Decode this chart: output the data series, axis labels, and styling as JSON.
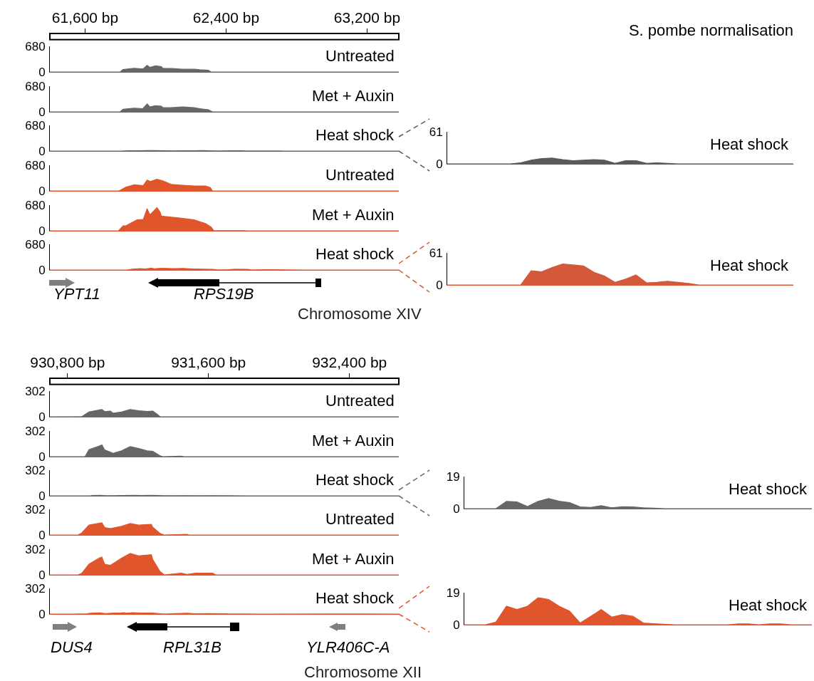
{
  "chart_data": [
    {
      "type": "area",
      "x": [
        61400,
        61799,
        61815,
        61879,
        61928,
        61952,
        61968,
        62000,
        62033,
        62041,
        62089,
        62154,
        62218,
        62251,
        62299,
        62315,
        63380
      ],
      "series": [
        {
          "name": "Untreated",
          "color": "#666666",
          "values": [
            0,
            0,
            65,
            97,
            78,
            175,
            120,
            162,
            140,
            97,
            90,
            71,
            71,
            58,
            45,
            0,
            0
          ]
        }
      ],
      "xlim": [
        61400,
        63380
      ],
      "ylim": [
        0,
        680
      ],
      "yticks": [
        0,
        680
      ],
      "xticks": [
        {
          "value": 61600,
          "label": "61,600 bp"
        },
        {
          "value": 62400,
          "label": "62,400 bp"
        },
        {
          "value": 63200,
          "label": "63,200 bp"
        }
      ]
    },
    {
      "type": "area",
      "x": [
        61400,
        61799,
        61815,
        61879,
        61928,
        61952,
        61968,
        62000,
        62033,
        62041,
        62089,
        62154,
        62218,
        62251,
        62299,
        62323,
        63380
      ],
      "series": [
        {
          "name": "Met + Auxin",
          "color": "#666666",
          "values": [
            0,
            0,
            70,
            95,
            85,
            210,
            130,
            165,
            150,
            110,
            110,
            130,
            110,
            85,
            55,
            0,
            0
          ]
        }
      ],
      "xlim": [
        61400,
        63380
      ],
      "ylim": [
        0,
        680
      ],
      "yticks": [
        0,
        680
      ],
      "tick_labels": "y"
    },
    {
      "type": "area",
      "x": [
        61400,
        61807,
        61849,
        61905,
        61955,
        61990,
        62046,
        62102,
        62158,
        62214,
        62270,
        62327,
        62355,
        62425,
        62495,
        62509,
        62621,
        62706,
        62720,
        63380
      ],
      "series": [
        {
          "name": "Heat shock",
          "color": "#666666",
          "values": [
            0,
            0,
            8,
            6,
            12,
            11,
            9,
            5,
            8,
            6,
            10,
            4,
            1,
            6,
            6,
            1,
            2,
            1,
            0,
            0
          ]
        }
      ],
      "xlim": [
        61400,
        63380
      ],
      "ylim": [
        0,
        680
      ],
      "yticks": [
        0,
        680
      ],
      "tick_labels": "y"
    },
    {
      "type": "area",
      "x": [
        61400,
        61790,
        61800,
        61831,
        61879,
        61930,
        61952,
        61970,
        62008,
        62040,
        62089,
        62154,
        62220,
        62283,
        62310,
        62323,
        63380
      ],
      "series": [
        {
          "name": "Untreated",
          "color": "#e0552b",
          "values": [
            0,
            0,
            20,
            97,
            162,
            140,
            290,
            250,
            311,
            270,
            175,
            150,
            130,
            130,
            90,
            0,
            0
          ]
        }
      ],
      "xlim": [
        61400,
        63380
      ],
      "ylim": [
        0,
        680
      ],
      "yticks": [
        0,
        680
      ],
      "tick_labels": "y"
    },
    {
      "type": "area",
      "x": [
        61400,
        61790,
        61815,
        61831,
        61895,
        61930,
        61952,
        61968,
        62008,
        62025,
        62033,
        62089,
        62154,
        62218,
        62283,
        62315,
        62330,
        62500,
        62520,
        63380
      ],
      "series": [
        {
          "name": "Met + Auxin",
          "color": "#e0552b",
          "values": [
            0,
            0,
            130,
            130,
            290,
            300,
            585,
            420,
            615,
            500,
            390,
            360,
            330,
            290,
            195,
            100,
            5,
            5,
            0,
            0
          ]
        }
      ],
      "xlim": [
        61400,
        63380
      ],
      "ylim": [
        0,
        680
      ],
      "yticks": [
        0,
        680
      ],
      "tick_labels": "y"
    },
    {
      "type": "area",
      "x": [
        61400,
        61835,
        61870,
        61912,
        61941,
        61978,
        61990,
        62032,
        62102,
        62158,
        62214,
        62270,
        62327,
        62355,
        62411,
        62453,
        62523,
        62544,
        62636,
        62748,
        62832,
        63380
      ],
      "series": [
        {
          "name": "Heat shock",
          "color": "#e0552b",
          "values": [
            0,
            0,
            23,
            38,
            25,
            51,
            30,
            43,
            36,
            41,
            28,
            20,
            15,
            5,
            8,
            20,
            18,
            1,
            8,
            4,
            0,
            0
          ]
        }
      ],
      "xlim": [
        61400,
        63380
      ],
      "ylim": [
        0,
        680
      ],
      "yticks": [
        0,
        680
      ],
      "tick_labels": "y",
      "annotations": [
        "YPT11",
        "RPS19B",
        "Chromosome XIV"
      ]
    },
    {
      "type": "area",
      "title": "S. pombe normalisation",
      "categories": [
        null,
        null,
        null,
        null,
        null,
        null,
        null,
        null,
        null,
        null,
        null,
        null,
        null,
        null,
        null,
        null,
        null,
        null,
        null,
        null,
        null,
        null,
        null,
        null,
        null,
        null,
        null,
        null,
        null,
        null,
        null,
        null,
        null,
        null
      ],
      "series": [
        {
          "name": "Heat shock",
          "color": "#5a5a5a",
          "values": [
            0,
            0,
            0,
            0,
            0,
            0,
            0,
            2,
            7,
            10,
            11,
            8,
            6,
            7,
            8,
            7,
            1,
            6,
            6,
            1,
            2,
            1,
            0,
            0,
            0,
            0,
            0,
            0,
            0,
            0,
            0,
            0,
            0,
            0
          ]
        }
      ],
      "ylim": [
        0,
        61
      ],
      "yticks": [
        0,
        61
      ],
      "tick_labels": "y"
    },
    {
      "type": "area",
      "categories": [
        null,
        null,
        null,
        null,
        null,
        null,
        null,
        null,
        null,
        null,
        null,
        null,
        null,
        null,
        null,
        null,
        null,
        null,
        null,
        null,
        null,
        null,
        null,
        null,
        null,
        null,
        null,
        null,
        null,
        null,
        null,
        null,
        null,
        null
      ],
      "series": [
        {
          "name": "Heat shock",
          "color": "#d4583a",
          "values": [
            0,
            0,
            0,
            0,
            0,
            0,
            0,
            0,
            27,
            25,
            33,
            40,
            38,
            36,
            24,
            17,
            5,
            11,
            19,
            4,
            5,
            7,
            5,
            3,
            0,
            0,
            0,
            0,
            0,
            0,
            0,
            0,
            0,
            0
          ]
        }
      ],
      "ylim": [
        0,
        61
      ],
      "yticks": [
        0,
        61
      ],
      "tick_labels": "y"
    },
    {
      "type": "area",
      "x": [
        930700,
        930882,
        930922,
        930979,
        930995,
        931011,
        931043,
        931059,
        931107,
        931156,
        931204,
        931252,
        931284,
        931309,
        931325,
        932680
      ],
      "series": [
        {
          "name": "Untreated",
          "color": "#666666",
          "values": [
            0,
            2,
            56,
            79,
            85,
            60,
            65,
            42,
            56,
            85,
            70,
            62,
            65,
            30,
            0,
            0
          ]
        }
      ],
      "xlim": [
        930700,
        932680
      ],
      "ylim": [
        0,
        302
      ],
      "yticks": [
        0,
        302
      ],
      "xticks": [
        {
          "value": 930800,
          "label": "930,800 bp"
        },
        {
          "value": 931600,
          "label": "931,600 bp"
        },
        {
          "value": 932400,
          "label": "932,400 bp"
        }
      ]
    },
    {
      "type": "area",
      "x": [
        930700,
        930900,
        930922,
        930979,
        930995,
        931011,
        931059,
        931107,
        931156,
        931204,
        931252,
        931284,
        931325,
        931341,
        931446,
        931460,
        932680
      ],
      "series": [
        {
          "name": "Met + Auxin",
          "color": "#666666",
          "values": [
            0,
            0,
            82,
            124,
            138,
            80,
            40,
            68,
            118,
            96,
            68,
            62,
            10,
            0,
            5,
            0,
            0
          ]
        }
      ],
      "xlim": [
        930700,
        932680
      ],
      "ylim": [
        0,
        302
      ],
      "yticks": [
        0,
        302
      ],
      "tick_labels": "y"
    },
    {
      "type": "area",
      "x": [
        930700,
        930931,
        930938,
        930987,
        931015,
        931064,
        931106,
        931176,
        931218,
        931274,
        931316,
        931337,
        931413,
        931483,
        931553,
        931623,
        931707,
        931819,
        931830,
        932680
      ],
      "series": [
        {
          "name": "Heat shock",
          "color": "#666666",
          "values": [
            0,
            0,
            4.3,
            6.1,
            1.8,
            1.2,
            3.8,
            6.1,
            4.3,
            4.5,
            3,
            1.1,
            0.6,
            1.8,
            0.3,
            1.5,
            0.5,
            0.2,
            0,
            0
          ]
        }
      ],
      "xlim": [
        930700,
        932680
      ],
      "ylim": [
        0,
        302
      ],
      "yticks": [
        0,
        302
      ],
      "tick_labels": "y"
    },
    {
      "type": "area",
      "x": [
        930700,
        930860,
        930882,
        930922,
        930995,
        931011,
        931043,
        931107,
        931156,
        931204,
        931276,
        931284,
        931325,
        931349,
        931478,
        931490,
        932680
      ],
      "series": [
        {
          "name": "Untreated",
          "color": "#e0552b",
          "values": [
            0,
            0,
            25,
            116,
            144,
            88,
            75,
            102,
            135,
            116,
            125,
            90,
            19,
            0,
            8,
            0,
            0
          ]
        }
      ],
      "xlim": [
        930700,
        932680
      ],
      "ylim": [
        0,
        302
      ],
      "yticks": [
        0,
        302
      ],
      "tick_labels": "y"
    },
    {
      "type": "area",
      "x": [
        930700,
        930860,
        930882,
        930922,
        930979,
        930995,
        931011,
        931043,
        931107,
        931156,
        931204,
        931276,
        931284,
        931325,
        931349,
        931446,
        931478,
        931527,
        931624,
        931640,
        932680
      ],
      "series": [
        {
          "name": "Met + Auxin",
          "color": "#e0552b",
          "values": [
            0,
            0,
            20,
            126,
            196,
            210,
            126,
            112,
            196,
            252,
            224,
            238,
            180,
            40,
            0,
            20,
            5,
            20,
            20,
            0,
            0
          ]
        }
      ],
      "xlim": [
        930700,
        932680
      ],
      "ylim": [
        0,
        302
      ],
      "yticks": [
        0,
        302
      ],
      "tick_labels": "y"
    },
    {
      "type": "area",
      "x": [
        930700,
        930826,
        930910,
        930938,
        930987,
        931015,
        931050,
        931106,
        931120,
        931134,
        931169,
        931218,
        931281,
        931330,
        931365,
        931413,
        931476,
        931525,
        931609,
        931693,
        931721,
        931805,
        931889,
        932281,
        932477,
        932680
      ],
      "series": [
        {
          "name": "Heat shock",
          "color": "#e0552b",
          "values": [
            0,
            0,
            2.4,
            11,
            13.4,
            5.5,
            10.3,
            14,
            16.3,
            10,
            16.6,
            11,
            11.9,
            4,
            0.5,
            4.7,
            9.5,
            4.3,
            6.3,
            4,
            1,
            0.5,
            0,
            0.5,
            0.5,
            0
          ]
        }
      ],
      "xlim": [
        930700,
        932680
      ],
      "ylim": [
        0,
        302
      ],
      "yticks": [
        0,
        302
      ],
      "tick_labels": "y",
      "annotations": [
        "DUS4",
        "RPL31B",
        "YLR406C-A",
        "Chromosome XII"
      ]
    },
    {
      "type": "area",
      "categories": [
        null,
        null,
        null,
        null,
        null,
        null,
        null,
        null,
        null,
        null,
        null,
        null,
        null,
        null,
        null,
        null,
        null,
        null,
        null,
        null,
        null,
        null,
        null,
        null,
        null,
        null,
        null,
        null,
        null,
        null,
        null,
        null,
        null,
        null
      ],
      "series": [
        {
          "name": "Heat shock",
          "color": "#666666",
          "values": [
            0,
            0,
            0,
            0,
            4.3,
            4,
            1.2,
            4.3,
            6,
            4.4,
            3.6,
            1,
            0.7,
            1.8,
            0.5,
            1.1,
            1,
            0.5,
            0.3,
            0,
            0,
            0,
            0,
            0,
            0,
            0,
            0,
            0,
            0,
            0,
            0,
            0,
            0,
            0
          ]
        }
      ],
      "ylim": [
        0,
        19
      ],
      "yticks": [
        0,
        19
      ],
      "tick_labels": "y"
    },
    {
      "type": "area",
      "categories": [
        null,
        null,
        null,
        null,
        null,
        null,
        null,
        null,
        null,
        null,
        null,
        null,
        null,
        null,
        null,
        null,
        null,
        null,
        null,
        null,
        null,
        null,
        null,
        null,
        null,
        null,
        null,
        null,
        null,
        null,
        null,
        null,
        null,
        null
      ],
      "series": [
        {
          "name": "Heat shock",
          "color": "#e0552b",
          "values": [
            0,
            0,
            0,
            1.5,
            11,
            9,
            11,
            16,
            15,
            11,
            8,
            1,
            5,
            9,
            4.5,
            6,
            5,
            1,
            0.6,
            0.3,
            0,
            0,
            0,
            0,
            0,
            0,
            0.5,
            0.5,
            0,
            0.5,
            0.5,
            0,
            0,
            0
          ]
        }
      ],
      "ylim": [
        0,
        19
      ],
      "yticks": [
        0,
        19
      ],
      "tick_labels": "y"
    }
  ]
}
